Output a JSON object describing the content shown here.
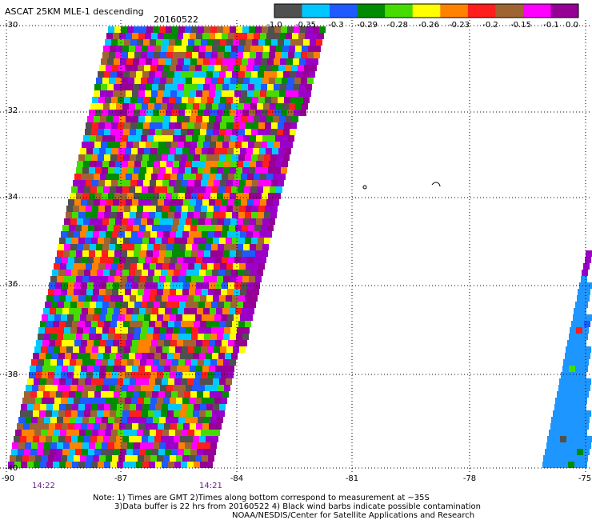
{
  "header": {
    "title": "ASCAT 25KM MLE-1 descending",
    "date": "20160522"
  },
  "colorbar": {
    "tick_labels": [
      "-1.0",
      "-0.35",
      "-0.3",
      "-0.29",
      "-0.28",
      "-0.26",
      "-0.23",
      "-0.2",
      "-0.15",
      "-0.1",
      "0.0"
    ],
    "colors": [
      "#505050",
      "#00c8ff",
      "#1e5aff",
      "#008c00",
      "#46dc00",
      "#ffff00",
      "#ff8200",
      "#ff1e1e",
      "#a06432",
      "#ff00ff",
      "#960096"
    ]
  },
  "axes": {
    "lat_labels": [
      "-30",
      "-32",
      "-34",
      "-36",
      "-38",
      "-40"
    ],
    "lon_labels": [
      "-90",
      "-87",
      "-84",
      "-81",
      "-78",
      "-75"
    ]
  },
  "times": {
    "left": "14:22",
    "right": "14:21"
  },
  "notes": {
    "line1": "Note: 1) Times are GMT 2)Times along bottom correspond to measurement at ~35S",
    "line2": "3)Data buffer is 22 hrs from 20160522 4) Black wind barbs indicate possible contamination",
    "line3": "NOAA/NESDIS/Center for Satellite Applications and Research"
  }
}
